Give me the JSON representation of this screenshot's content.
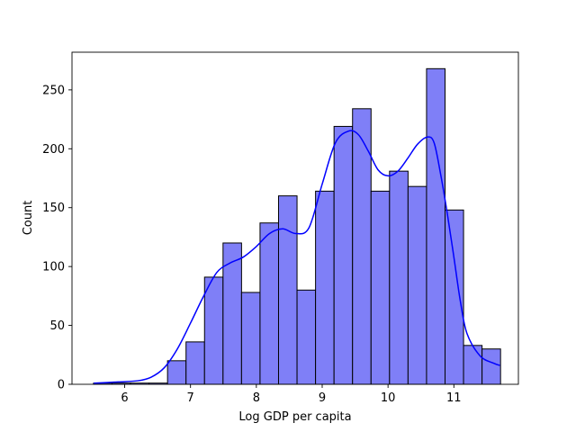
{
  "chart_data": {
    "type": "bar",
    "subtype": "histogram-with-kde",
    "title": "",
    "xlabel": "Log GDP per capita",
    "ylabel": "Count",
    "xlim": [
      5.2,
      11.98
    ],
    "ylim": [
      0,
      282
    ],
    "xticks": [
      6,
      7,
      8,
      9,
      10,
      11
    ],
    "yticks": [
      0,
      50,
      100,
      150,
      200,
      250
    ],
    "grid": false,
    "legend": "none",
    "bar_color": "#7f7ff7",
    "bar_edge_color": "#000000",
    "kde_color": "#0000ff",
    "bins": [
      {
        "x0": 5.527,
        "x1": 5.808,
        "count": 1
      },
      {
        "x0": 5.808,
        "x1": 6.089,
        "count": 1
      },
      {
        "x0": 6.089,
        "x1": 6.37,
        "count": 1
      },
      {
        "x0": 6.37,
        "x1": 6.651,
        "count": 1
      },
      {
        "x0": 6.651,
        "x1": 6.932,
        "count": 20
      },
      {
        "x0": 6.932,
        "x1": 7.213,
        "count": 36
      },
      {
        "x0": 7.213,
        "x1": 7.494,
        "count": 91
      },
      {
        "x0": 7.494,
        "x1": 7.775,
        "count": 120
      },
      {
        "x0": 7.775,
        "x1": 8.056,
        "count": 78
      },
      {
        "x0": 8.056,
        "x1": 8.337,
        "count": 137
      },
      {
        "x0": 8.337,
        "x1": 8.618,
        "count": 160
      },
      {
        "x0": 8.618,
        "x1": 8.899,
        "count": 80
      },
      {
        "x0": 8.899,
        "x1": 9.18,
        "count": 164
      },
      {
        "x0": 9.18,
        "x1": 9.461,
        "count": 219
      },
      {
        "x0": 9.461,
        "x1": 9.742,
        "count": 234
      },
      {
        "x0": 9.742,
        "x1": 10.023,
        "count": 164
      },
      {
        "x0": 10.023,
        "x1": 10.304,
        "count": 181
      },
      {
        "x0": 10.304,
        "x1": 10.585,
        "count": 168
      },
      {
        "x0": 10.585,
        "x1": 10.866,
        "count": 268
      },
      {
        "x0": 10.866,
        "x1": 11.147,
        "count": 148
      },
      {
        "x0": 11.147,
        "x1": 11.428,
        "count": 33
      },
      {
        "x0": 11.428,
        "x1": 11.709,
        "count": 30
      }
    ],
    "kde": {
      "x": [
        5.53,
        5.9,
        6.2,
        6.4,
        6.6,
        6.8,
        7.0,
        7.2,
        7.4,
        7.6,
        7.8,
        8.0,
        8.2,
        8.4,
        8.6,
        8.8,
        9.0,
        9.2,
        9.4,
        9.55,
        9.7,
        9.85,
        10.0,
        10.15,
        10.3,
        10.45,
        10.6,
        10.7,
        10.8,
        10.9,
        11.0,
        11.1,
        11.2,
        11.4,
        11.6,
        11.7
      ],
      "y": [
        1,
        2,
        3,
        6,
        14,
        30,
        52,
        75,
        95,
        103,
        108,
        117,
        128,
        132,
        128,
        133,
        170,
        205,
        215,
        212,
        198,
        182,
        177,
        181,
        192,
        204,
        210,
        205,
        178,
        145,
        108,
        70,
        43,
        24,
        18,
        16
      ]
    }
  }
}
